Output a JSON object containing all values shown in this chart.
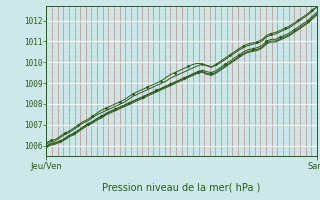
{
  "title": "Pression niveau de la mer( hPa )",
  "xlabel_left": "Jeu/Ven",
  "xlabel_right": "Sam",
  "ylim": [
    1005.5,
    1012.7
  ],
  "yticks": [
    1006,
    1007,
    1008,
    1009,
    1010,
    1011,
    1012
  ],
  "bg_color": "#cce8e8",
  "line_color": "#2d5a1b",
  "n_points": 60,
  "series": {
    "main": [
      1006.0,
      1006.1,
      1006.15,
      1006.2,
      1006.35,
      1006.5,
      1006.6,
      1006.75,
      1006.9,
      1007.05,
      1007.15,
      1007.3,
      1007.4,
      1007.55,
      1007.65,
      1007.75,
      1007.85,
      1007.95,
      1008.05,
      1008.15,
      1008.25,
      1008.35,
      1008.45,
      1008.55,
      1008.65,
      1008.75,
      1008.85,
      1008.95,
      1009.05,
      1009.15,
      1009.25,
      1009.35,
      1009.45,
      1009.55,
      1009.62,
      1009.55,
      1009.5,
      1009.6,
      1009.75,
      1009.9,
      1010.05,
      1010.2,
      1010.35,
      1010.5,
      1010.6,
      1010.65,
      1010.7,
      1010.8,
      1011.0,
      1011.1,
      1011.1,
      1011.2,
      1011.3,
      1011.4,
      1011.55,
      1011.7,
      1011.85,
      1012.0,
      1012.2,
      1012.4
    ],
    "upper": [
      1006.15,
      1006.25,
      1006.3,
      1006.45,
      1006.6,
      1006.7,
      1006.85,
      1007.0,
      1007.15,
      1007.25,
      1007.4,
      1007.55,
      1007.7,
      1007.8,
      1007.9,
      1008.0,
      1008.1,
      1008.2,
      1008.35,
      1008.5,
      1008.6,
      1008.7,
      1008.8,
      1008.9,
      1009.0,
      1009.1,
      1009.25,
      1009.4,
      1009.5,
      1009.6,
      1009.7,
      1009.8,
      1009.9,
      1009.95,
      1009.92,
      1009.85,
      1009.78,
      1009.9,
      1010.05,
      1010.2,
      1010.35,
      1010.5,
      1010.65,
      1010.78,
      1010.88,
      1010.93,
      1010.98,
      1011.08,
      1011.28,
      1011.38,
      1011.43,
      1011.53,
      1011.63,
      1011.73,
      1011.88,
      1012.03,
      1012.18,
      1012.33,
      1012.53,
      1012.63
    ],
    "lower": [
      1005.92,
      1006.02,
      1006.07,
      1006.17,
      1006.27,
      1006.42,
      1006.52,
      1006.67,
      1006.82,
      1006.97,
      1007.07,
      1007.22,
      1007.32,
      1007.47,
      1007.57,
      1007.67,
      1007.77,
      1007.87,
      1007.97,
      1008.07,
      1008.17,
      1008.27,
      1008.37,
      1008.47,
      1008.57,
      1008.67,
      1008.77,
      1008.87,
      1008.97,
      1009.07,
      1009.17,
      1009.27,
      1009.37,
      1009.47,
      1009.52,
      1009.42,
      1009.37,
      1009.47,
      1009.62,
      1009.77,
      1009.92,
      1010.07,
      1010.22,
      1010.37,
      1010.47,
      1010.52,
      1010.57,
      1010.67,
      1010.87,
      1010.97,
      1010.97,
      1011.07,
      1011.17,
      1011.27,
      1011.42,
      1011.57,
      1011.72,
      1011.87,
      1012.07,
      1012.27
    ],
    "extra1": [
      1006.08,
      1006.18,
      1006.23,
      1006.38,
      1006.53,
      1006.63,
      1006.78,
      1006.93,
      1007.08,
      1007.18,
      1007.33,
      1007.48,
      1007.58,
      1007.68,
      1007.78,
      1007.88,
      1007.98,
      1008.08,
      1008.23,
      1008.38,
      1008.48,
      1008.58,
      1008.68,
      1008.78,
      1008.88,
      1008.98,
      1009.08,
      1009.23,
      1009.33,
      1009.43,
      1009.53,
      1009.63,
      1009.73,
      1009.83,
      1009.9,
      1009.83,
      1009.76,
      1009.86,
      1009.98,
      1010.13,
      1010.28,
      1010.43,
      1010.58,
      1010.7,
      1010.8,
      1010.86,
      1010.91,
      1011.01,
      1011.21,
      1011.31,
      1011.36,
      1011.46,
      1011.56,
      1011.66,
      1011.81,
      1011.96,
      1012.11,
      1012.26,
      1012.46,
      1012.66
    ],
    "extra2": [
      1005.97,
      1006.07,
      1006.12,
      1006.22,
      1006.32,
      1006.47,
      1006.57,
      1006.72,
      1006.87,
      1007.02,
      1007.12,
      1007.27,
      1007.37,
      1007.52,
      1007.62,
      1007.72,
      1007.82,
      1007.92,
      1008.02,
      1008.12,
      1008.22,
      1008.32,
      1008.42,
      1008.52,
      1008.62,
      1008.72,
      1008.82,
      1008.92,
      1009.02,
      1009.12,
      1009.22,
      1009.32,
      1009.42,
      1009.52,
      1009.57,
      1009.47,
      1009.42,
      1009.52,
      1009.67,
      1009.82,
      1009.97,
      1010.12,
      1010.27,
      1010.42,
      1010.52,
      1010.57,
      1010.62,
      1010.72,
      1010.92,
      1011.02,
      1011.02,
      1011.12,
      1011.22,
      1011.32,
      1011.47,
      1011.62,
      1011.77,
      1011.92,
      1012.12,
      1012.32
    ]
  }
}
